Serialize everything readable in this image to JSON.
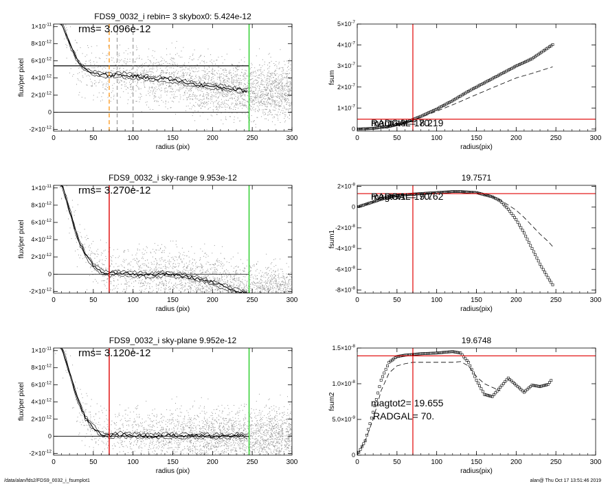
{
  "colors": {
    "axis": "#000000",
    "scatter": "#808080",
    "radgal_line": "#e00000",
    "edge_line": "#22cc22",
    "skybox_line": "#ff8c00",
    "profile": "#000000",
    "dashed": "#000000"
  },
  "footer": {
    "path": "/data/alan/fds2/FDS9_0032_i_fsumplot1",
    "stamp": "alan@  Thu Oct 17 13:51:46 2019"
  },
  "chart_data": [
    {
      "id": "p1",
      "type": "scatter",
      "title": "FDS9_0032_i rebin= 3    skybox0:  5.424e-12",
      "annotation": "rms= 3.096e-12",
      "xlabel": "radius (pix)",
      "ylabel": "flux/per pixel",
      "xlim": [
        0,
        300
      ],
      "ylim": [
        -2.2e-12,
        1.03e-11
      ],
      "xticks": [
        0,
        50,
        100,
        150,
        200,
        250,
        300
      ],
      "xticklabels": [
        "0",
        "50",
        "100",
        "150",
        "200",
        "250",
        "300"
      ],
      "yticks": [
        -2e-12,
        0,
        2e-12,
        4e-12,
        6e-12,
        8e-12,
        1e-11
      ],
      "yticklabels": [
        [
          "-2×10",
          "-12"
        ],
        [
          "0",
          ""
        ],
        [
          "2×10",
          "-12"
        ],
        [
          "4×10",
          "-12"
        ],
        [
          "6×10",
          "-12"
        ],
        [
          "8×10",
          "-12"
        ],
        [
          "1×10",
          "-11"
        ]
      ],
      "hlines": [
        5.424e-12,
        0
      ],
      "vlines": [
        {
          "x": 70,
          "color": "#ff8c00",
          "dashed": true
        },
        {
          "x": 80,
          "color": "#999999",
          "dashed": true
        },
        {
          "x": 100,
          "color": "#999999",
          "dashed": true
        },
        {
          "x": 246,
          "color": "#22cc22",
          "dashed": false
        }
      ],
      "sky": 5.424e-12,
      "profile": {
        "x": [
          10,
          20,
          30,
          40,
          50,
          60,
          70,
          80,
          90,
          100,
          120,
          140,
          160,
          180,
          200,
          220,
          240,
          245
        ],
        "y": [
          1.05e-11,
          8e-12,
          6e-12,
          5e-12,
          4.6e-12,
          4.4e-12,
          4.3e-12,
          4.4e-12,
          4.3e-12,
          4.2e-12,
          4e-12,
          3.9e-12,
          3.6e-12,
          3.2e-12,
          3e-12,
          2.8e-12,
          2.5e-12,
          2.5e-12
        ],
        "band": 2.5e-13
      }
    },
    {
      "id": "p2",
      "type": "line",
      "title": "",
      "xlabel": "radius(pix)",
      "ylabel": "fsum",
      "xlim": [
        0,
        300
      ],
      "ylim": [
        -1e-08,
        5e-07
      ],
      "xticks": [
        0,
        50,
        100,
        150,
        200,
        250,
        300
      ],
      "xticklabels": [
        "0",
        "50",
        "100",
        "150",
        "200",
        "250",
        "300"
      ],
      "yticks": [
        0,
        1e-07,
        2e-07,
        3e-07,
        4e-07,
        5e-07
      ],
      "yticklabels": [
        [
          "0",
          ""
        ],
        [
          "1×10",
          "-7"
        ],
        [
          "2×10",
          "-7"
        ],
        [
          "3×10",
          "-7"
        ],
        [
          "4×10",
          "-7"
        ],
        [
          "5×10",
          "-7"
        ]
      ],
      "hline": 4.7e-08,
      "vline": 70,
      "labels": [
        "magtot0=  18.219",
        "RADGAL=     70."
      ],
      "series": [
        {
          "x": [
            0,
            20,
            40,
            60,
            80,
            100,
            120,
            140,
            160,
            180,
            200,
            220,
            246
          ],
          "y": [
            0,
            3e-09,
            1.2e-08,
            3e-08,
            6e-08,
            9.5e-08,
            1.35e-07,
            1.8e-07,
            2.2e-07,
            2.6e-07,
            3e-07,
            3.35e-07,
            4.02e-07
          ]
        },
        {
          "x": [
            0,
            20,
            40,
            60,
            80,
            100,
            120,
            140,
            160,
            180,
            200,
            220,
            246
          ],
          "y": [
            0,
            3e-09,
            1.2e-08,
            3e-08,
            5.6e-08,
            8.5e-08,
            1.15e-07,
            1.48e-07,
            1.8e-07,
            2.12e-07,
            2.43e-07,
            2.65e-07,
            2.96e-07
          ]
        }
      ]
    },
    {
      "id": "p3",
      "type": "scatter",
      "title": "FDS9_0032_i sky-range  9.953e-12",
      "annotation": "rms= 3.270e-12",
      "xlabel": "radius (pix)",
      "ylabel": "flux/per pixel",
      "xlim": [
        0,
        300
      ],
      "ylim": [
        -2.2e-12,
        1.03e-11
      ],
      "xticks": [
        0,
        50,
        100,
        150,
        200,
        250,
        300
      ],
      "xticklabels": [
        "0",
        "50",
        "100",
        "150",
        "200",
        "250",
        "300"
      ],
      "yticks": [
        -2e-12,
        0,
        2e-12,
        4e-12,
        6e-12,
        8e-12,
        1e-11
      ],
      "yticklabels": [
        [
          "-2×10",
          "-12"
        ],
        [
          "0",
          ""
        ],
        [
          "2×10",
          "-12"
        ],
        [
          "4×10",
          "-12"
        ],
        [
          "6×10",
          "-12"
        ],
        [
          "8×10",
          "-12"
        ],
        [
          "1×10",
          "-11"
        ]
      ],
      "hlines": [
        0
      ],
      "vlines": [
        {
          "x": 70,
          "color": "#e00000",
          "dashed": false
        },
        {
          "x": 246,
          "color": "#22cc22",
          "dashed": false
        }
      ],
      "sky": 0,
      "profile": {
        "x": [
          10,
          20,
          30,
          40,
          50,
          60,
          70,
          80,
          100,
          120,
          140,
          160,
          180,
          200,
          220,
          240,
          245
        ],
        "y": [
          1.05e-11,
          7.5e-12,
          4.3e-12,
          2.2e-12,
          1e-12,
          3e-13,
          0,
          2e-13,
          0,
          -1e-13,
          0,
          -2e-13,
          -5e-13,
          -1e-12,
          -1.6e-12,
          -2.2e-12,
          -2.3e-12
        ],
        "band": 2.5e-13
      }
    },
    {
      "id": "p4",
      "type": "line",
      "title": "19.7571",
      "xlabel": "radius(pix)",
      "ylabel": "fsum1",
      "xlim": [
        0,
        300
      ],
      "ylim": [
        -8.3e-08,
        2.1e-08
      ],
      "xticks": [
        0,
        50,
        100,
        150,
        200,
        250,
        300
      ],
      "xticklabels": [
        "0",
        "50",
        "100",
        "150",
        "200",
        "250",
        "300"
      ],
      "yticks": [
        -8e-08,
        -6e-08,
        -4e-08,
        -2e-08,
        0,
        2e-08
      ],
      "yticklabels": [
        [
          "-8×10",
          "-8"
        ],
        [
          "-6×10",
          "-8"
        ],
        [
          "-4×10",
          "-8"
        ],
        [
          "-2×10",
          "-8"
        ],
        [
          "0",
          ""
        ],
        [
          "2×10",
          "-8"
        ]
      ],
      "hline": 1.3e-08,
      "vline": 70,
      "labels": [
        "magtot1=  19.762",
        "RADGAL=     70."
      ],
      "series": [
        {
          "x": [
            0,
            20,
            40,
            60,
            80,
            100,
            120,
            130,
            150,
            170,
            180,
            190,
            200,
            210,
            220,
            230,
            240,
            246
          ],
          "y": [
            0,
            5e-09,
            1e-08,
            1.2e-08,
            1.3e-08,
            1.4e-08,
            1.5e-08,
            1.5e-08,
            1.4e-08,
            1e-08,
            6e-09,
            -2e-09,
            -1.2e-08,
            -2.5e-08,
            -4e-08,
            -5.5e-08,
            -6.8e-08,
            -7.5e-08
          ]
        },
        {
          "x": [
            0,
            20,
            40,
            60,
            80,
            100,
            120,
            130,
            150,
            170,
            180,
            190,
            200,
            210,
            220,
            230,
            240,
            246
          ],
          "y": [
            0,
            5e-09,
            1e-08,
            1.2e-08,
            1.3e-08,
            1.4e-08,
            1.5e-08,
            1.5e-08,
            1.4e-08,
            1e-08,
            7e-09,
            2e-09,
            -3e-09,
            -1e-08,
            -1.8e-08,
            -2.6e-08,
            -3.3e-08,
            -3.8e-08
          ]
        }
      ]
    },
    {
      "id": "p5",
      "type": "scatter",
      "title": "FDS9_0032_i sky-plane  9.952e-12",
      "annotation": "rms= 3.120e-12",
      "xlabel": "radius (pix)",
      "ylabel": "flux/per pixel",
      "xlim": [
        0,
        300
      ],
      "ylim": [
        -2.2e-12,
        1.03e-11
      ],
      "xticks": [
        0,
        50,
        100,
        150,
        200,
        250,
        300
      ],
      "xticklabels": [
        "0",
        "50",
        "100",
        "150",
        "200",
        "250",
        "300"
      ],
      "yticks": [
        -2e-12,
        0,
        2e-12,
        4e-12,
        6e-12,
        8e-12,
        1e-11
      ],
      "yticklabels": [
        [
          "-2×10",
          "-12"
        ],
        [
          "0",
          ""
        ],
        [
          "2×10",
          "-12"
        ],
        [
          "4×10",
          "-12"
        ],
        [
          "6×10",
          "-12"
        ],
        [
          "8×10",
          "-12"
        ],
        [
          "1×10",
          "-11"
        ]
      ],
      "hlines": [
        0
      ],
      "vlines": [
        {
          "x": 70,
          "color": "#e00000",
          "dashed": false
        },
        {
          "x": 246,
          "color": "#22cc22",
          "dashed": false
        }
      ],
      "sky": 0,
      "profile": {
        "x": [
          10,
          20,
          30,
          40,
          50,
          60,
          70,
          80,
          100,
          120,
          140,
          160,
          180,
          200,
          220,
          240,
          245
        ],
        "y": [
          1.05e-11,
          7.5e-12,
          4.3e-12,
          2.2e-12,
          1e-12,
          3e-13,
          0,
          2e-13,
          1e-13,
          0,
          1e-13,
          0,
          1e-13,
          0,
          0,
          1e-13,
          0
        ],
        "band": 2.5e-13
      }
    },
    {
      "id": "p6",
      "type": "line",
      "title": "19.6748",
      "xlabel": "radius(pix)",
      "ylabel": "fsum2",
      "xlim": [
        0,
        300
      ],
      "ylim": [
        0,
        1.5e-08
      ],
      "xticks": [
        0,
        50,
        100,
        150,
        200,
        250,
        300
      ],
      "xticklabels": [
        "0",
        "50",
        "100",
        "150",
        "200",
        "250",
        "300"
      ],
      "yticks": [
        0,
        5e-09,
        1e-08,
        1.5e-08
      ],
      "yticklabels": [
        [
          "0",
          ""
        ],
        [
          "5.0×10",
          "-9"
        ],
        [
          "1.0×10",
          "-8"
        ],
        [
          "1.5×10",
          "-8"
        ]
      ],
      "hline": 1.39e-08,
      "vline": 70,
      "labels": [
        "magtot2=  19.655",
        "RADGAL=     70."
      ],
      "series": [
        {
          "x": [
            0,
            10,
            20,
            30,
            40,
            50,
            60,
            70,
            80,
            100,
            120,
            130,
            140,
            150,
            160,
            170,
            180,
            190,
            200,
            210,
            220,
            230,
            240,
            245
          ],
          "y": [
            0,
            2e-09,
            6e-09,
            1.05e-08,
            1.3e-08,
            1.38e-08,
            1.4e-08,
            1.41e-08,
            1.42e-08,
            1.43e-08,
            1.45e-08,
            1.43e-08,
            1.3e-08,
            1.05e-08,
            8.5e-09,
            8.2e-09,
            9.5e-09,
            1.08e-08,
            9.8e-09,
            8.8e-09,
            9.8e-09,
            9.6e-09,
            9.9e-09,
            1.06e-08
          ]
        },
        {
          "x": [
            0,
            10,
            20,
            30,
            40,
            50,
            60,
            70,
            80,
            100,
            120,
            130,
            140,
            150,
            160,
            170,
            180
          ],
          "y": [
            0,
            2e-09,
            5e-09,
            9e-09,
            1.15e-08,
            1.25e-08,
            1.28e-08,
            1.3e-08,
            1.3e-08,
            1.3e-08,
            1.3e-08,
            1.31e-08,
            1.25e-08,
            1.1e-08,
            1e-08,
            9.5e-09,
            9e-09
          ]
        }
      ]
    }
  ]
}
